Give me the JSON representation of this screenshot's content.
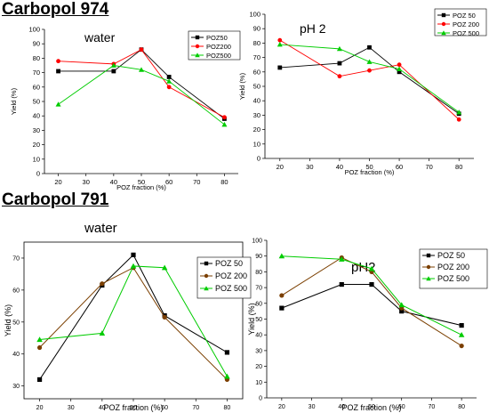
{
  "headings": {
    "top": "Carbopol 974",
    "bottom": "Carbopol 791"
  },
  "chart_data": [
    {
      "type": "line",
      "annotation": "water",
      "xlabel": "POZ fraction (%)",
      "ylabel": "Yield (%)",
      "xlim": [
        15,
        85
      ],
      "ylim": [
        0,
        100
      ],
      "xticks": [
        20,
        30,
        40,
        50,
        60,
        70,
        80
      ],
      "yticks": [
        0,
        10,
        20,
        30,
        40,
        50,
        60,
        70,
        80,
        90,
        100
      ],
      "legend_position": "top-right",
      "series": [
        {
          "name": "POZ50",
          "color": "#000000",
          "marker": "square",
          "x": [
            20,
            40,
            50,
            60,
            80
          ],
          "y": [
            71,
            71,
            86,
            67,
            38
          ]
        },
        {
          "name": "POZ200",
          "color": "#ff0000",
          "marker": "circle",
          "x": [
            20,
            40,
            50,
            60,
            80
          ],
          "y": [
            78,
            76,
            86,
            60,
            39
          ]
        },
        {
          "name": "POZ500",
          "color": "#00cc00",
          "marker": "triangle",
          "x": [
            20,
            40,
            50,
            60,
            80
          ],
          "y": [
            48,
            75,
            72,
            64,
            34
          ]
        }
      ]
    },
    {
      "type": "line",
      "annotation": "pH 2",
      "xlabel": "POZ fraction (%)",
      "ylabel": "Yield (%)",
      "xlim": [
        15,
        85
      ],
      "ylim": [
        0,
        100
      ],
      "xticks": [
        20,
        30,
        40,
        50,
        60,
        70,
        80
      ],
      "yticks": [
        0,
        10,
        20,
        30,
        40,
        50,
        60,
        70,
        80,
        90,
        100
      ],
      "legend_position": "top-right",
      "series": [
        {
          "name": "POZ 50",
          "color": "#000000",
          "marker": "square",
          "x": [
            20,
            40,
            50,
            60,
            80
          ],
          "y": [
            63,
            66,
            77,
            60,
            31
          ]
        },
        {
          "name": "POZ 200",
          "color": "#ff0000",
          "marker": "circle",
          "x": [
            20,
            40,
            50,
            60,
            80
          ],
          "y": [
            82,
            57,
            61,
            65,
            27
          ]
        },
        {
          "name": "POZ 500",
          "color": "#00cc00",
          "marker": "triangle",
          "x": [
            20,
            40,
            50,
            60,
            80
          ],
          "y": [
            79,
            76,
            67,
            62,
            32
          ]
        }
      ]
    },
    {
      "type": "line",
      "annotation": "water",
      "xlabel": "POZ fraction (%)",
      "ylabel": "Yield (%)",
      "xlim": [
        15,
        85
      ],
      "ylim": [
        26,
        75
      ],
      "xticks": [
        20,
        30,
        40,
        50,
        60,
        70,
        80
      ],
      "yticks": [
        30,
        40,
        50,
        60,
        70
      ],
      "legend_position": "right",
      "series": [
        {
          "name": "POZ 50",
          "color": "#000000",
          "marker": "square",
          "x": [
            20,
            40,
            50,
            60,
            80
          ],
          "y": [
            32,
            61.5,
            71,
            52,
            40.5
          ]
        },
        {
          "name": "POZ 200",
          "color": "#7b3f00",
          "marker": "circle",
          "x": [
            20,
            40,
            50,
            60,
            80
          ],
          "y": [
            42,
            62,
            67,
            51.5,
            32
          ]
        },
        {
          "name": "POZ 500",
          "color": "#00cc00",
          "marker": "triangle",
          "x": [
            20,
            40,
            50,
            60,
            80
          ],
          "y": [
            44.5,
            46.5,
            67.5,
            67,
            33
          ]
        }
      ]
    },
    {
      "type": "line",
      "annotation": "pH2",
      "xlabel": "POZ fraction (%)",
      "ylabel": "Yield (%)",
      "xlim": [
        15,
        85
      ],
      "ylim": [
        0,
        100
      ],
      "xticks": [
        20,
        30,
        40,
        50,
        60,
        70,
        80
      ],
      "yticks": [
        0,
        10,
        20,
        30,
        40,
        50,
        60,
        70,
        80,
        90,
        100
      ],
      "legend_position": "right",
      "series": [
        {
          "name": "POZ 50",
          "color": "#000000",
          "marker": "square",
          "x": [
            20,
            40,
            50,
            60,
            80
          ],
          "y": [
            57,
            72,
            72,
            55,
            46
          ]
        },
        {
          "name": "POZ 200",
          "color": "#7b3f00",
          "marker": "circle",
          "x": [
            20,
            40,
            50,
            60,
            80
          ],
          "y": [
            65,
            89,
            80,
            57,
            33
          ]
        },
        {
          "name": "POZ 500",
          "color": "#00cc00",
          "marker": "triangle",
          "x": [
            20,
            40,
            50,
            60,
            80
          ],
          "y": [
            90,
            88,
            82,
            59,
            40
          ]
        }
      ]
    }
  ]
}
